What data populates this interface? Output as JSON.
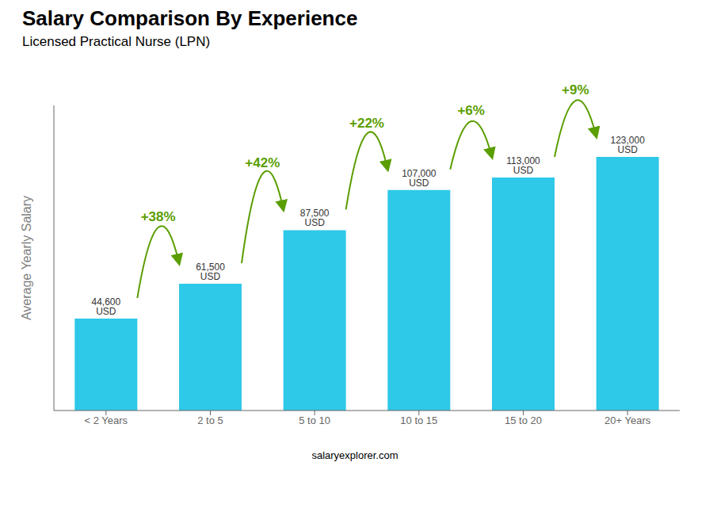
{
  "chart_data": {
    "type": "bar",
    "title": "Salary Comparison By Experience",
    "subtitle": "Licensed Practical Nurse (LPN)",
    "ylabel": "Average Yearly Salary",
    "categories": [
      "< 2 Years",
      "2 to 5",
      "5 to 10",
      "10 to 15",
      "15 to 20",
      "20+ Years"
    ],
    "values": [
      44600,
      61500,
      87500,
      107000,
      113000,
      123000
    ],
    "value_labels": [
      "44,600 USD",
      "61,500 USD",
      "87,500 USD",
      "107,000 USD",
      "113,000 USD",
      "123,000 USD"
    ],
    "data_labels": true,
    "annotations": [
      "+38%",
      "+42%",
      "+22%",
      "+6%",
      "+9%"
    ],
    "watermark": "salaryexplorer.com",
    "color": "#2ec8e8",
    "ylim": [
      0,
      148000
    ],
    "tick_labels": "x",
    "grid": false
  }
}
